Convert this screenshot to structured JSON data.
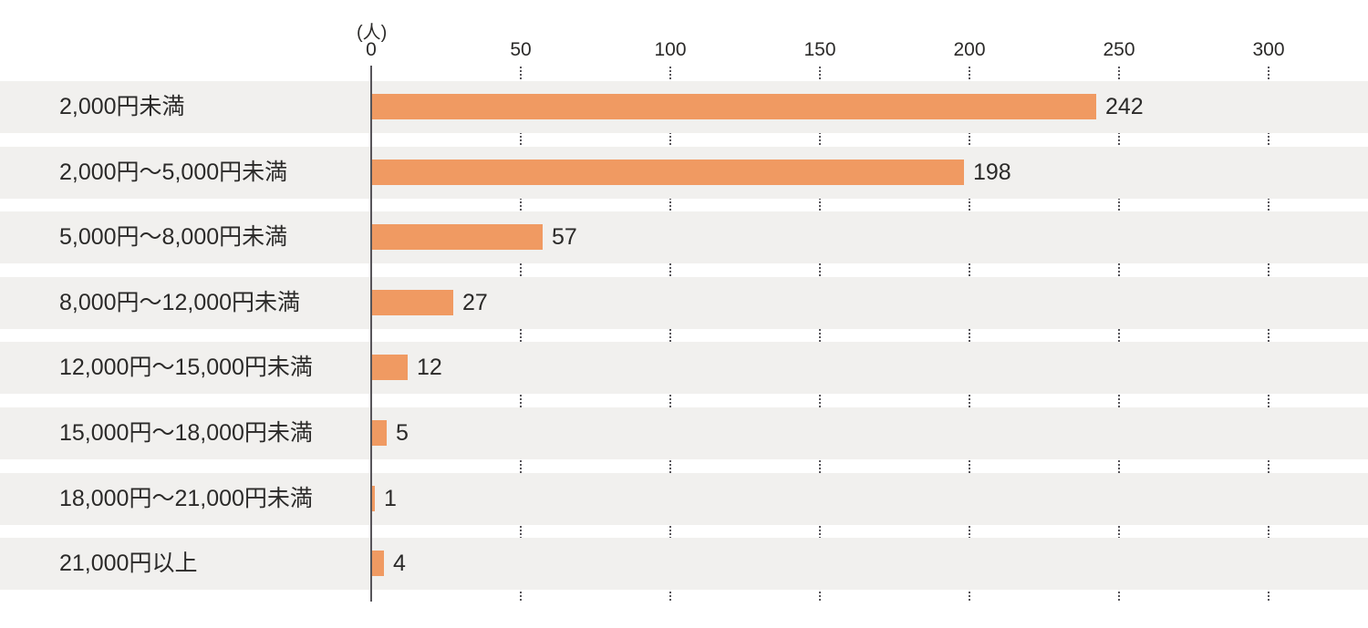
{
  "chart_data": {
    "type": "bar",
    "orientation": "horizontal",
    "unit_label": "(人)",
    "categories": [
      "2,000円未満",
      "2,000円〜5,000円未満",
      "5,000円〜8,000円未満",
      "8,000円〜12,000円未満",
      "12,000円〜15,000円未満",
      "15,000円〜18,000円未満",
      "18,000円〜21,000円未満",
      "21,000円以上"
    ],
    "values": [
      242,
      198,
      57,
      27,
      12,
      5,
      1,
      4
    ],
    "x_ticks": [
      0,
      50,
      100,
      150,
      200,
      250,
      300
    ],
    "xlim": [
      0,
      300
    ],
    "grid_on": true,
    "grid_style": "dotted",
    "legend": "none",
    "colors": {
      "bar": "#F09A62",
      "band": "#F1F0EE",
      "axis": "#57555A",
      "grid": "#57555A",
      "text": "#2B2A29",
      "background": "#FFFFFF"
    }
  }
}
